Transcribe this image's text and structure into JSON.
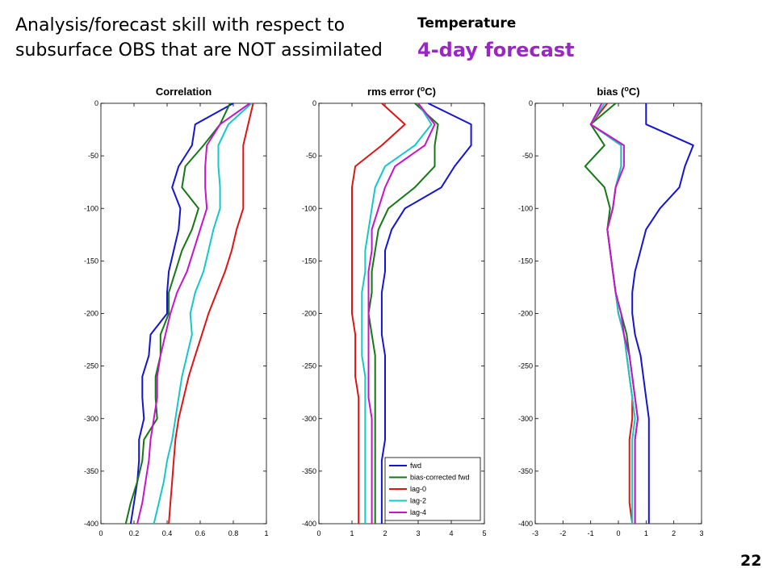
{
  "heading": {
    "line1": "Analysis/forecast skill with respect to",
    "line2": "subsurface OBS that are NOT assimilated"
  },
  "variable": "Temperature",
  "lead": "4-day forecast",
  "page_number": "22",
  "colors": {
    "fwd": "#1414d2",
    "bias_corrected_fwd": "#147814",
    "lag0": "#e01414",
    "lag2": "#14c8c8",
    "lag4": "#c814c8",
    "lead_text": "#9b26c8"
  },
  "chart_data": [
    {
      "type": "line",
      "title": "Correlation",
      "xlim": [
        0,
        1
      ],
      "ylim": [
        -400,
        0
      ],
      "xticks": [
        "0",
        "0.2",
        "0.4",
        "0.6",
        "0.8",
        "1"
      ],
      "yticks": [
        "0",
        "-50",
        "-100",
        "-150",
        "-200",
        "-250",
        "-300",
        "-350",
        "-400"
      ],
      "depth": [
        0,
        -20,
        -40,
        -60,
        -80,
        -100,
        -120,
        -140,
        -160,
        -180,
        -200,
        -220,
        -240,
        -260,
        -280,
        -300,
        -320,
        -340,
        -360,
        -380,
        -400
      ],
      "series": [
        {
          "name": "fwd",
          "values": [
            0.8,
            0.57,
            0.55,
            0.47,
            0.43,
            0.48,
            0.47,
            0.44,
            0.41,
            0.4,
            0.4,
            0.3,
            0.29,
            0.25,
            0.25,
            0.26,
            0.23,
            0.23,
            0.22,
            0.2,
            0.18
          ]
        },
        {
          "name": "bias-corrected fwd",
          "values": [
            0.78,
            0.72,
            0.62,
            0.51,
            0.49,
            0.59,
            0.55,
            0.49,
            0.45,
            0.41,
            0.41,
            0.36,
            0.36,
            0.33,
            0.33,
            0.34,
            0.26,
            0.25,
            0.22,
            0.18,
            0.15
          ]
        },
        {
          "name": "lag-0",
          "values": [
            0.92,
            0.89,
            0.86,
            0.86,
            0.86,
            0.86,
            0.82,
            0.79,
            0.75,
            0.7,
            0.65,
            0.61,
            0.57,
            0.53,
            0.5,
            0.47,
            0.45,
            0.44,
            0.43,
            0.42,
            0.41
          ]
        },
        {
          "name": "lag-2",
          "values": [
            0.91,
            0.77,
            0.71,
            0.71,
            0.72,
            0.72,
            0.68,
            0.65,
            0.62,
            0.57,
            0.54,
            0.55,
            0.52,
            0.49,
            0.47,
            0.45,
            0.43,
            0.4,
            0.38,
            0.35,
            0.32
          ]
        },
        {
          "name": "lag-4",
          "values": [
            0.9,
            0.72,
            0.64,
            0.63,
            0.63,
            0.64,
            0.6,
            0.56,
            0.52,
            0.46,
            0.42,
            0.39,
            0.36,
            0.34,
            0.34,
            0.32,
            0.3,
            0.29,
            0.27,
            0.25,
            0.22
          ]
        }
      ]
    },
    {
      "type": "line",
      "title": "rms error (°C)",
      "title_parts": {
        "pre": "rms error (",
        "sup": "o",
        "post": "C)"
      },
      "xlim": [
        0,
        5
      ],
      "ylim": [
        -400,
        0
      ],
      "xticks": [
        "0",
        "1",
        "2",
        "3",
        "4",
        "5"
      ],
      "yticks": [
        "0",
        "-50",
        "-100",
        "-150",
        "-200",
        "-250",
        "-300",
        "-350",
        "-400"
      ],
      "depth": [
        0,
        -20,
        -40,
        -60,
        -80,
        -100,
        -120,
        -140,
        -160,
        -180,
        -200,
        -220,
        -240,
        -260,
        -280,
        -300,
        -320,
        -340,
        -360,
        -380,
        -400
      ],
      "series": [
        {
          "name": "fwd",
          "values": [
            3.3,
            4.6,
            4.6,
            4.1,
            3.7,
            2.6,
            2.2,
            2.0,
            2.0,
            1.9,
            1.9,
            1.9,
            2.0,
            2.0,
            2.0,
            2.0,
            2.0,
            1.9,
            1.9,
            1.9,
            1.9
          ]
        },
        {
          "name": "bias-corrected fwd",
          "values": [
            2.9,
            3.6,
            3.5,
            3.5,
            2.9,
            2.1,
            1.8,
            1.7,
            1.6,
            1.6,
            1.5,
            1.6,
            1.7,
            1.7,
            1.7,
            1.7,
            1.7,
            1.7,
            1.7,
            1.7,
            1.7
          ]
        },
        {
          "name": "lag-0",
          "values": [
            1.9,
            2.6,
            1.9,
            1.1,
            1.0,
            1.0,
            1.0,
            1.0,
            1.0,
            1.0,
            1.0,
            1.1,
            1.1,
            1.1,
            1.2,
            1.2,
            1.2,
            1.2,
            1.2,
            1.2,
            1.2
          ]
        },
        {
          "name": "lag-2",
          "values": [
            3.0,
            3.4,
            2.9,
            2.0,
            1.7,
            1.6,
            1.5,
            1.4,
            1.4,
            1.3,
            1.3,
            1.3,
            1.3,
            1.4,
            1.4,
            1.4,
            1.4,
            1.4,
            1.4,
            1.4,
            1.4
          ]
        },
        {
          "name": "lag-4",
          "values": [
            3.0,
            3.5,
            3.2,
            2.3,
            2.0,
            1.8,
            1.6,
            1.6,
            1.5,
            1.5,
            1.5,
            1.5,
            1.5,
            1.5,
            1.5,
            1.6,
            1.6,
            1.6,
            1.6,
            1.6,
            1.6
          ]
        }
      ],
      "legend_position": "lower-right"
    },
    {
      "type": "line",
      "title": "bias (°C)",
      "title_parts": {
        "pre": "bias (",
        "sup": "o",
        "post": "C)"
      },
      "xlim": [
        -3,
        3
      ],
      "ylim": [
        -400,
        0
      ],
      "xticks": [
        "-3",
        "-2",
        "-1",
        "0",
        "1",
        "2",
        "3"
      ],
      "yticks": [
        "0",
        "-50",
        "-100",
        "-150",
        "-200",
        "-250",
        "-300",
        "-350",
        "-400"
      ],
      "depth": [
        0,
        -20,
        -40,
        -60,
        -80,
        -100,
        -120,
        -140,
        -160,
        -180,
        -200,
        -220,
        -240,
        -260,
        -280,
        -300,
        -320,
        -340,
        -360,
        -380,
        -400
      ],
      "series": [
        {
          "name": "fwd",
          "values": [
            1.0,
            1.0,
            2.7,
            2.4,
            2.2,
            1.5,
            1.0,
            0.8,
            0.6,
            0.5,
            0.5,
            0.6,
            0.8,
            0.9,
            1.0,
            1.1,
            1.1,
            1.1,
            1.1,
            1.1,
            1.1
          ]
        },
        {
          "name": "bias-corrected fwd",
          "values": [
            -0.1,
            -1.0,
            -0.5,
            -1.2,
            -0.5,
            -0.3,
            -0.4,
            -0.3,
            -0.2,
            -0.1,
            0.1,
            0.3,
            0.4,
            0.5,
            0.6,
            0.7,
            0.6,
            0.6,
            0.6,
            0.6,
            0.6
          ]
        },
        {
          "name": "lag-0",
          "values": [
            -0.4,
            -1.0,
            0.1,
            0.1,
            -0.1,
            -0.2,
            -0.4,
            -0.3,
            -0.2,
            -0.1,
            0.0,
            0.2,
            0.3,
            0.4,
            0.5,
            0.5,
            0.4,
            0.4,
            0.4,
            0.4,
            0.5
          ]
        },
        {
          "name": "lag-2",
          "values": [
            -0.5,
            -1.0,
            0.1,
            0.1,
            -0.1,
            -0.2,
            -0.4,
            -0.3,
            -0.2,
            -0.1,
            0.0,
            0.2,
            0.3,
            0.4,
            0.5,
            0.6,
            0.5,
            0.5,
            0.5,
            0.5,
            0.5
          ]
        },
        {
          "name": "lag-4",
          "values": [
            -0.6,
            -1.0,
            0.2,
            0.2,
            -0.1,
            -0.2,
            -0.4,
            -0.3,
            -0.2,
            -0.1,
            0.1,
            0.2,
            0.4,
            0.5,
            0.6,
            0.7,
            0.6,
            0.6,
            0.6,
            0.6,
            0.6
          ]
        }
      ]
    }
  ],
  "legend": {
    "entries": [
      "fwd",
      "bias-corrected fwd",
      "lag-0",
      "lag-2",
      "lag-4"
    ]
  }
}
